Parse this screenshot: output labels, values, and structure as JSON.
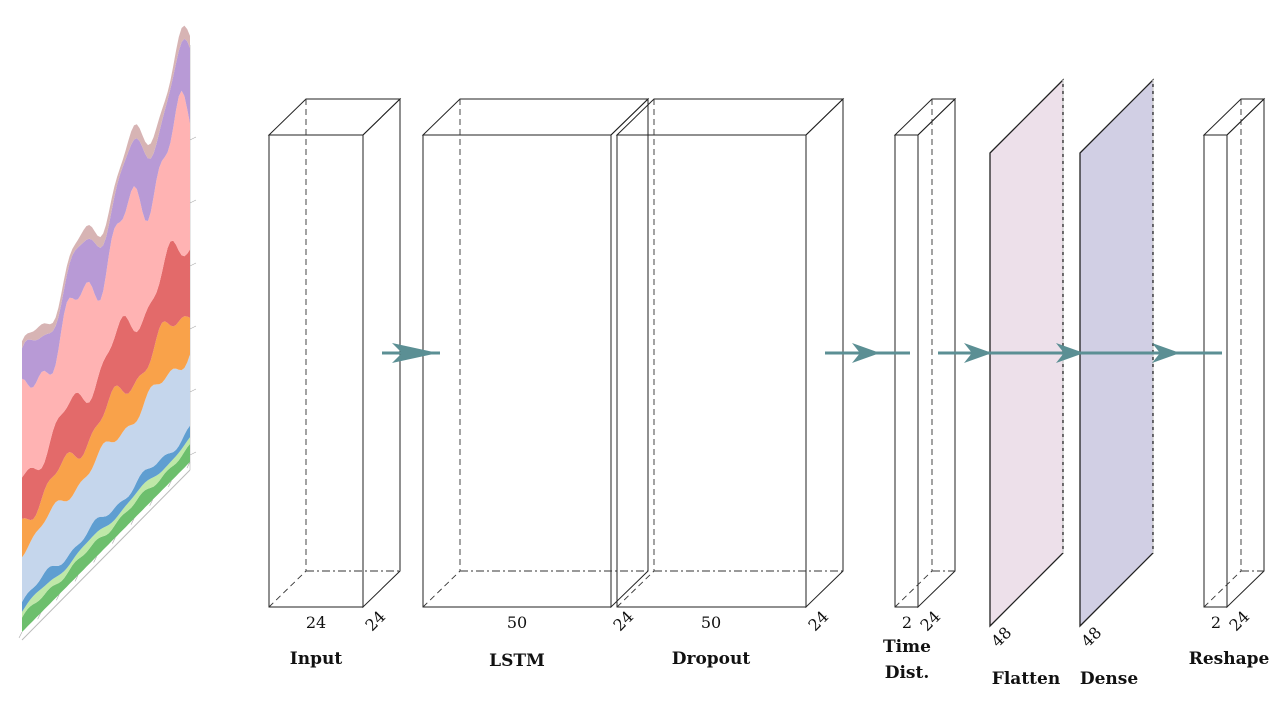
{
  "diagram": {
    "layers": [
      {
        "id": "input",
        "caption": "Input",
        "dims": [
          "24",
          "24"
        ],
        "face": "#d4dbeb",
        "side": "#d4dbeb"
      },
      {
        "id": "lstm",
        "caption": "LSTM",
        "dims": [
          "50",
          "24"
        ],
        "face": "#ffebd6",
        "side": "#ffebd6"
      },
      {
        "id": "dropout",
        "caption": "Dropout",
        "dims": [
          "50",
          "24"
        ],
        "face": "#c2d4fb",
        "side": "#c2d4fb"
      },
      {
        "id": "timedist",
        "caption_line1": "Time",
        "caption_line2": "Dist.",
        "dims": [
          "2",
          "24"
        ],
        "face": "#ffd4a8",
        "side": "#ffd4a8"
      },
      {
        "id": "flatten",
        "caption": "Flatten",
        "dims": [
          "48"
        ],
        "face": "#ede0ea"
      },
      {
        "id": "dense",
        "caption": "Dense",
        "dims": [
          "48"
        ],
        "face": "#d1cfe4"
      },
      {
        "id": "reshape",
        "caption": "Reshape",
        "dims": [
          "2",
          "24"
        ],
        "face": "#c6e7e3",
        "side": "#c6e7e3"
      }
    ],
    "arrow_color": "#5b8f94",
    "input_plot": {
      "type": "area",
      "stack_colors": [
        "#6dbf6d",
        "#bfe8a8",
        "#5f9ed1",
        "#c5d6ec",
        "#f9a24a",
        "#e36a6a",
        "#ffb3b3",
        "#b89ad6",
        "#d7b4b4"
      ]
    }
  }
}
